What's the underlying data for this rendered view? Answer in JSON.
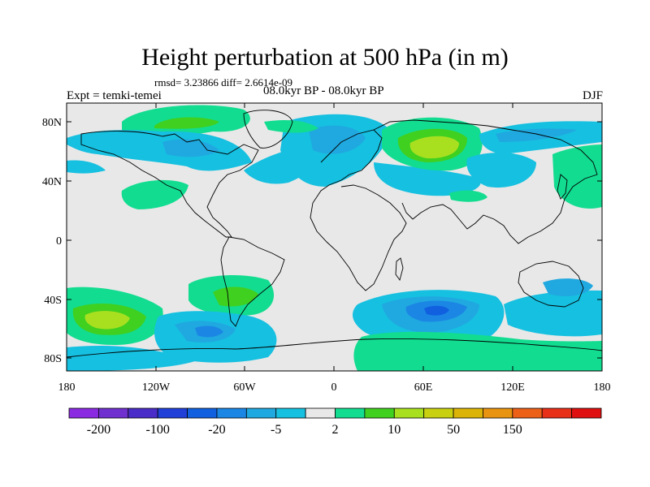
{
  "header": {
    "title": "Height perturbation at 500 hPa (in m)",
    "stats": "rmsd= 3.23866 diff= 2.6614e-09",
    "left_label": "Expt = temki-temei",
    "center_label": "08.0kyr BP - 08.0kyr BP",
    "right_label": "DJF"
  },
  "map": {
    "background_color": "#e8e8e8",
    "lat_ticks": [
      "80N",
      "40N",
      "0",
      "40S",
      "80S"
    ],
    "lon_ticks": [
      "180",
      "120W",
      "60W",
      "0",
      "60E",
      "120E",
      "180"
    ]
  },
  "colorbar": {
    "colors": [
      "#8a2be2",
      "#7030d0",
      "#4a2cc8",
      "#2040d8",
      "#1060e0",
      "#1c86e4",
      "#20a8e0",
      "#16c0e0",
      "#e8e8e8",
      "#12dc90",
      "#40d020",
      "#a8e020",
      "#c8d010",
      "#dcb408",
      "#e89410",
      "#ec6018",
      "#e83018",
      "#e01010"
    ],
    "labels": [
      "-200",
      "-100",
      "-20",
      "-5",
      "2",
      "10",
      "50",
      "150"
    ]
  }
}
